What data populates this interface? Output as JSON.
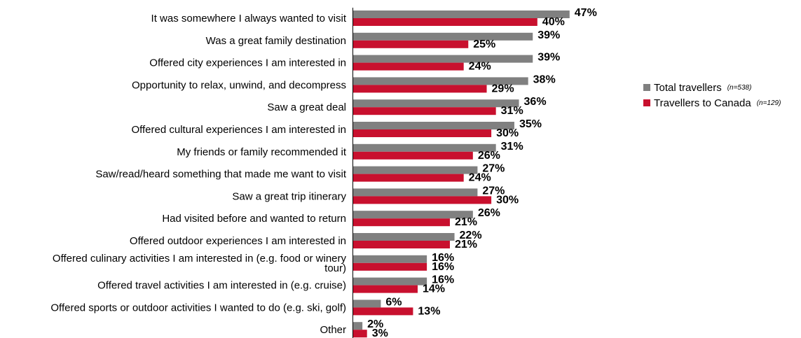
{
  "chart_data": {
    "type": "bar",
    "orientation": "horizontal",
    "categories": [
      "It was somewhere I always wanted to visit",
      "Was a great family destination",
      "Offered  city experiences I am interested in",
      "Opportunity to relax, unwind, and decompress",
      "Saw a great deal",
      "Offered  cultural experiences I am interested in",
      "My friends or family recommended it",
      "Saw/read/heard  something that made me want to visit",
      "Saw a great trip itinerary",
      "Had visited before and wanted to return",
      "Offered  outdoor experiences I am interested in",
      "Offered  culinary activities I am interested in (e.g. food or winery tour)",
      "Offered  travel activities I am interested in (e.g. cruise)",
      "Offered  sports or outdoor activities I wanted to do (e.g. ski, golf)",
      "Other"
    ],
    "category_lines": [
      [
        "It was somewhere I always wanted to visit"
      ],
      [
        "Was a great family destination"
      ],
      [
        "Offered  city experiences I am interested in"
      ],
      [
        "Opportunity to relax, unwind, and decompress"
      ],
      [
        "Saw a great deal"
      ],
      [
        "Offered  cultural experiences I am interested in"
      ],
      [
        "My friends or family recommended it"
      ],
      [
        "Saw/read/heard  something that made me want to visit"
      ],
      [
        "Saw a great trip itinerary"
      ],
      [
        "Had visited before and wanted to return"
      ],
      [
        "Offered  outdoor experiences I am interested in"
      ],
      [
        "Offered  culinary activities I am interested in (e.g. food or winery",
        "tour)"
      ],
      [
        "Offered  travel activities I am interested in (e.g. cruise)"
      ],
      [
        "Offered  sports or outdoor activities I wanted to do (e.g. ski, golf)"
      ],
      [
        "Other"
      ]
    ],
    "series": [
      {
        "name": "Total travellers",
        "n_label": "(n=538)",
        "color": "#808080",
        "values": [
          47,
          39,
          39,
          38,
          36,
          35,
          31,
          27,
          27,
          26,
          22,
          16,
          16,
          6,
          2
        ]
      },
      {
        "name": "Travellers  to Canada",
        "n_label": "(n=129)",
        "color": "#c8102e",
        "values": [
          40,
          25,
          24,
          29,
          31,
          30,
          26,
          24,
          30,
          21,
          21,
          16,
          14,
          13,
          3
        ]
      }
    ],
    "value_suffix": "%",
    "xlim": [
      0,
      50
    ],
    "grid": false,
    "legend_position": "right"
  }
}
